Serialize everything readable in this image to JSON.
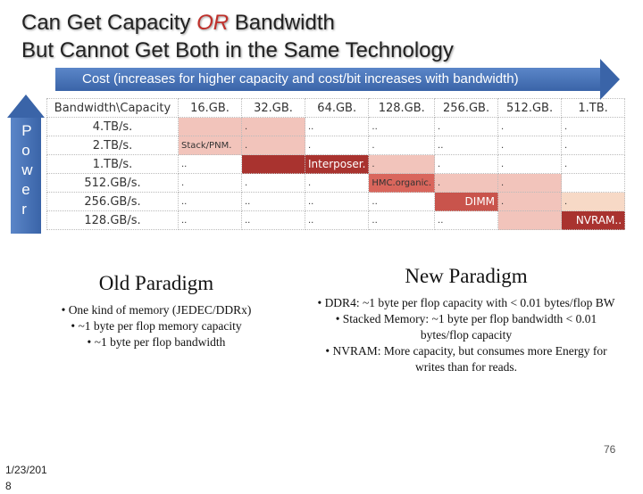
{
  "title": {
    "line1_start": "Can Get Capacity ",
    "line1_em": "OR",
    "line1_end": " Bandwidth",
    "line2": "But Cannot Get Both in the Same Technology"
  },
  "cost_arrow": "Cost (increases for higher capacity and cost/bit increases with bandwidth)",
  "power_arrow": "Power",
  "table": {
    "header": [
      "Bandwidth\\Capacity",
      "16.GB.",
      "32.GB.",
      "64.GB.",
      "128.GB.",
      "256.GB.",
      "512.GB.",
      "1.TB."
    ],
    "rows": [
      {
        "label": "4.TB/s.",
        "cells": [
          null,
          ".",
          "..",
          "..",
          ".",
          ".",
          "."
        ],
        "fills": [
          "#f2c4bb",
          "#f2c4bb",
          null,
          null,
          null,
          null,
          null
        ]
      },
      {
        "label": "2.TB/s.",
        "cells": [
          "Stack/PNM.",
          ".",
          ".",
          ".",
          "..",
          ".",
          "."
        ],
        "fills": [
          "#f2c4bb",
          "#f2c4bb",
          null,
          null,
          null,
          null,
          null
        ]
      },
      {
        "label": "1.TB/s.",
        "cells": [
          "..",
          null,
          "Interposer.",
          ".",
          ".",
          ".",
          "."
        ],
        "fills": [
          null,
          "#a9332f",
          "#a9332f",
          "#f2c4bb",
          null,
          null,
          null
        ]
      },
      {
        "label": "512.GB/s.",
        "cells": [
          ".",
          ".",
          ".",
          "HMC.organic.",
          ".",
          ".",
          null
        ],
        "fills": [
          null,
          null,
          null,
          "#d9665c",
          "#f2c4bb",
          "#f2c4bb",
          null
        ]
      },
      {
        "label": "256.GB/s.",
        "cells": [
          "..",
          "..",
          "..",
          "..",
          "DIMM",
          ".",
          "."
        ],
        "fills": [
          null,
          null,
          null,
          null,
          "#c9544c",
          "#f2c4bb",
          "#f7d9c6"
        ]
      },
      {
        "label": "128.GB/s.",
        "cells": [
          "..",
          "..",
          "..",
          "..",
          "..",
          null,
          "NVRAM.."
        ],
        "fills": [
          null,
          null,
          null,
          null,
          null,
          "#f2c4bb",
          "#a9332f"
        ]
      }
    ]
  },
  "old_paradigm": {
    "heading": "Old Paradigm",
    "bullets": [
      "One kind of memory (JEDEC/DDRx)",
      "~1 byte per flop memory capacity",
      "~1 byte per flop bandwidth"
    ]
  },
  "new_paradigm": {
    "heading": "New Paradigm",
    "bullets": [
      "DDR4: ~1 byte per flop capacity with < 0.01 bytes/flop BW",
      "Stacked Memory: ~1 byte per flop bandwidth < 0.01 bytes/flop capacity",
      "NVRAM: More capacity, but consumes more Energy for writes than for reads."
    ]
  },
  "page_number": "76",
  "date": "1/23/2018"
}
